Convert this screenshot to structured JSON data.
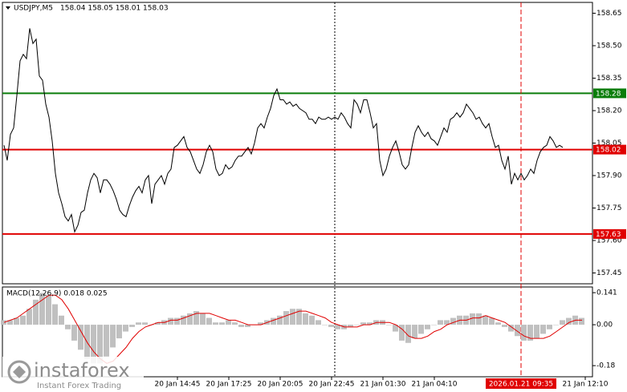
{
  "chart_data": [
    {
      "type": "line",
      "title": "USDJPY,M5",
      "subtitle": "158.04 158.05 158.01 158.03",
      "series": [
        {
          "color": "#000000",
          "values": [
            158.04,
            157.97,
            158.09,
            158.12,
            158.27,
            158.43,
            158.46,
            158.44,
            158.58,
            158.51,
            158.53,
            158.36,
            158.34,
            158.23,
            158.17,
            158.06,
            157.91,
            157.82,
            157.77,
            157.71,
            157.69,
            157.72,
            157.64,
            157.67,
            157.73,
            157.74,
            157.82,
            157.88,
            157.91,
            157.89,
            157.82,
            157.88,
            157.88,
            157.86,
            157.83,
            157.79,
            157.74,
            157.72,
            157.71,
            157.76,
            157.8,
            157.83,
            157.85,
            157.82,
            157.88,
            157.9,
            157.77,
            157.86,
            157.88,
            157.9,
            157.86,
            157.91,
            157.93,
            158.03,
            158.04,
            158.06,
            158.08,
            158.03,
            158.01,
            157.97,
            157.93,
            157.91,
            157.95,
            158.01,
            158.04,
            158.01,
            157.93,
            157.9,
            157.91,
            157.95,
            157.93,
            157.94,
            157.97,
            157.99,
            157.99,
            158.01,
            158.03,
            158.0,
            158.05,
            158.12,
            158.14,
            158.12,
            158.17,
            158.21,
            158.27,
            158.3,
            158.25,
            158.25,
            158.23,
            158.24,
            158.22,
            158.23,
            158.21,
            158.2,
            158.19,
            158.16,
            158.16,
            158.14,
            158.17,
            158.16,
            158.16,
            158.17,
            158.16,
            158.17,
            158.16,
            158.19,
            158.17,
            158.14,
            158.12,
            158.25,
            158.23,
            158.19,
            158.25,
            158.25,
            158.19,
            158.12,
            158.14,
            157.97,
            157.9,
            157.93,
            157.99,
            158.03,
            158.06,
            158.01,
            157.95,
            157.93,
            157.95,
            158.03,
            158.1,
            158.13,
            158.1,
            158.08,
            158.1,
            158.07,
            158.06,
            158.04,
            158.08,
            158.12,
            158.1,
            158.16,
            158.17,
            158.19,
            158.17,
            158.19,
            158.23,
            158.21,
            158.19,
            158.16,
            158.17,
            158.14,
            158.12,
            158.14,
            158.08,
            158.03,
            158.04,
            157.97,
            157.93,
            157.99,
            157.86,
            157.91,
            157.88,
            157.91,
            157.88,
            157.9,
            157.93,
            157.91,
            157.97,
            158.01,
            158.03,
            158.04,
            158.08,
            158.06,
            158.03,
            158.04,
            158.03
          ]
        }
      ],
      "xlim": [
        0,
        183
      ],
      "xticks": [
        {
          "value": 54,
          "label": "20 Jan 14:45"
        },
        {
          "value": 70,
          "label": "20 Jan 17:25"
        },
        {
          "value": 86,
          "label": "20 Jan 20:05"
        },
        {
          "value": 102,
          "label": "20 Jan 22:45"
        },
        {
          "value": 118,
          "label": "21 Jan 01:30"
        },
        {
          "value": 134,
          "label": "21 Jan 04:10"
        },
        {
          "value": 181,
          "label": "21 Jan 12:10"
        }
      ],
      "ylim": [
        157.4,
        158.7
      ],
      "yticks": [
        158.65,
        {
          "value": 158.5,
          "label": "158.50"
        },
        158.35,
        {
          "value": 158.2,
          "label": "158.20"
        },
        158.05,
        {
          "value": 157.9,
          "label": "157.90"
        },
        157.75,
        {
          "value": 157.6,
          "label": "157.60"
        },
        157.45
      ],
      "levels": [
        {
          "value": 158.28,
          "color": "#0a7d0a"
        },
        {
          "value": 158.02,
          "color": "#e00000"
        },
        {
          "value": 157.63,
          "color": "#e00000"
        }
      ],
      "cursor": {
        "value": 161,
        "label": "2026.01.21 09:35",
        "color": "#e00000"
      }
    },
    {
      "type": "macd",
      "title": "MACD(12,26,9) 0.018 0.025",
      "series": [
        {
          "type": "bar",
          "color": "#c0c0c0",
          "values": [
            0.02,
            0.02,
            0.03,
            0.04,
            0.07,
            0.11,
            0.14,
            0.13,
            0.09,
            0.04,
            -0.02,
            -0.07,
            -0.11,
            -0.15,
            -0.17,
            -0.17,
            -0.14,
            -0.1,
            -0.06,
            -0.03,
            -0.01,
            0.01,
            0.01,
            0.0,
            0.01,
            0.02,
            0.03,
            0.03,
            0.04,
            0.05,
            0.06,
            0.05,
            0.03,
            0.01,
            0.01,
            0.02,
            0.01,
            -0.01,
            -0.01,
            0.0,
            0.01,
            0.02,
            0.03,
            0.04,
            0.06,
            0.07,
            0.07,
            0.05,
            0.04,
            0.02,
            0.0,
            -0.01,
            -0.02,
            -0.02,
            -0.01,
            0.0,
            0.01,
            0.01,
            0.02,
            0.02,
            0.0,
            -0.03,
            -0.07,
            -0.08,
            -0.06,
            -0.04,
            -0.02,
            0.0,
            0.02,
            0.02,
            0.03,
            0.04,
            0.04,
            0.05,
            0.05,
            0.04,
            0.03,
            0.01,
            -0.01,
            -0.03,
            -0.05,
            -0.07,
            -0.07,
            -0.06,
            -0.04,
            -0.02,
            0.0,
            0.02,
            0.03,
            0.04,
            0.03
          ]
        },
        {
          "type": "line",
          "color": "#e00000",
          "values": [
            0.01,
            0.02,
            0.03,
            0.05,
            0.07,
            0.09,
            0.11,
            0.13,
            0.13,
            0.11,
            0.07,
            0.02,
            -0.03,
            -0.08,
            -0.12,
            -0.15,
            -0.17,
            -0.16,
            -0.13,
            -0.1,
            -0.06,
            -0.03,
            -0.01,
            0.0,
            0.01,
            0.01,
            0.02,
            0.02,
            0.03,
            0.04,
            0.05,
            0.05,
            0.05,
            0.04,
            0.03,
            0.02,
            0.02,
            0.01,
            0.0,
            0.0,
            0.0,
            0.01,
            0.02,
            0.03,
            0.04,
            0.05,
            0.06,
            0.06,
            0.05,
            0.04,
            0.03,
            0.01,
            0.0,
            -0.01,
            -0.01,
            -0.01,
            0.0,
            0.0,
            0.01,
            0.01,
            0.01,
            0.0,
            -0.02,
            -0.05,
            -0.06,
            -0.06,
            -0.05,
            -0.03,
            -0.02,
            0.0,
            0.01,
            0.02,
            0.02,
            0.03,
            0.03,
            0.04,
            0.03,
            0.02,
            0.01,
            -0.01,
            -0.03,
            -0.05,
            -0.06,
            -0.06,
            -0.06,
            -0.05,
            -0.03,
            -0.01,
            0.01,
            0.02,
            0.02
          ]
        }
      ],
      "xlim": [
        0,
        91.5
      ],
      "ylim": [
        -0.229,
        0.166
      ],
      "yticks": [
        0.141,
        {
          "value": 0,
          "label": "0.00"
        },
        -0.18
      ]
    }
  ],
  "logo": {
    "brand": "instaforex",
    "tagline": "Instant Forex Trading"
  }
}
